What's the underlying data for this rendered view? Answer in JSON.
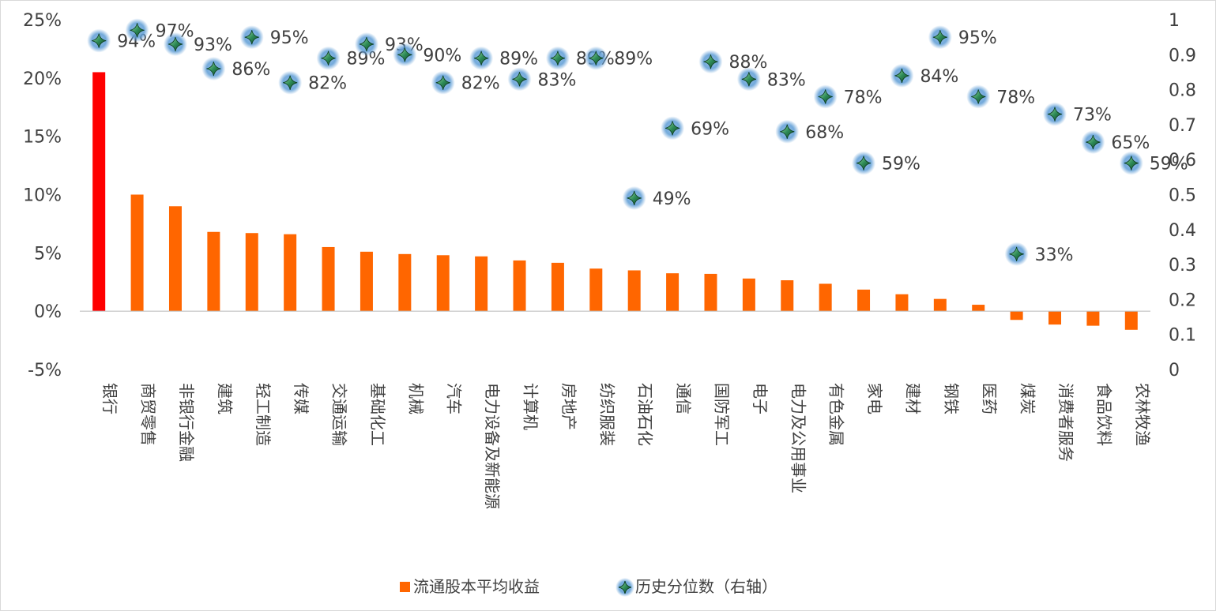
{
  "chart_data": {
    "type": "bar",
    "categories": [
      "银行",
      "商贸零售",
      "非银行金融",
      "建筑",
      "轻工制造",
      "传媒",
      "交通运输",
      "基础化工",
      "机械",
      "汽车",
      "电力设备及新能源",
      "计算机",
      "房地产",
      "纺织服装",
      "石油石化",
      "通信",
      "国防军工",
      "电子",
      "电力及公用事业",
      "有色金属",
      "家电",
      "建材",
      "钢铁",
      "医药",
      "煤炭",
      "消费者服务",
      "食品饮料",
      "农林牧渔"
    ],
    "series": [
      {
        "name": "流通股本平均收益",
        "type": "bar",
        "axis": "left",
        "values": [
          20.5,
          10.0,
          9.0,
          6.8,
          6.7,
          6.6,
          5.5,
          5.1,
          4.9,
          4.8,
          4.7,
          4.35,
          4.15,
          3.65,
          3.5,
          3.25,
          3.2,
          2.8,
          2.65,
          2.35,
          1.85,
          1.45,
          1.05,
          0.55,
          -0.75,
          -1.15,
          -1.25,
          -1.6
        ]
      },
      {
        "name": "历史分位数（右轴）",
        "type": "scatter",
        "axis": "right",
        "values": [
          0.94,
          0.97,
          0.93,
          0.86,
          0.95,
          0.82,
          0.89,
          0.93,
          0.9,
          0.82,
          0.89,
          0.83,
          0.89,
          0.89,
          0.49,
          0.69,
          0.88,
          0.83,
          0.68,
          0.78,
          0.59,
          0.84,
          0.95,
          0.78,
          0.33,
          0.73,
          0.65,
          0.59
        ],
        "labels": [
          "94%",
          "97%",
          "93%",
          "86%",
          "95%",
          "82%",
          "89%",
          "93%",
          "90%",
          "82%",
          "89%",
          "83%",
          "89%",
          "89%",
          "49%",
          "69%",
          "88%",
          "83%",
          "68%",
          "78%",
          "59%",
          "84%",
          "95%",
          "78%",
          "33%",
          "73%",
          "65%",
          "59%"
        ]
      }
    ],
    "y_left": {
      "min": -5,
      "max": 25,
      "ticks": [
        "-5%",
        "0%",
        "5%",
        "10%",
        "15%",
        "20%",
        "25%"
      ],
      "tick_values": [
        -5,
        0,
        5,
        10,
        15,
        20,
        25
      ]
    },
    "y_right": {
      "min": 0,
      "max": 1,
      "ticks": [
        "0",
        "0.1",
        "0.2",
        "0.3",
        "0.4",
        "0.5",
        "0.6",
        "0.7",
        "0.8",
        "0.9",
        "1"
      ],
      "tick_values": [
        0,
        0.1,
        0.2,
        0.3,
        0.4,
        0.5,
        0.6,
        0.7,
        0.8,
        0.9,
        1
      ]
    },
    "highlight_index": 0,
    "colors": {
      "bar": "#ff6600",
      "bar_highlight": "#ff0000",
      "marker": "#2e8b57",
      "marker_glow": "#5b9bd5",
      "axis": "#bfbfbf",
      "text": "#404040"
    },
    "legend": {
      "position": "bottom",
      "items": [
        "流通股本平均收益",
        "历史分位数（右轴）"
      ]
    },
    "grid": false
  }
}
